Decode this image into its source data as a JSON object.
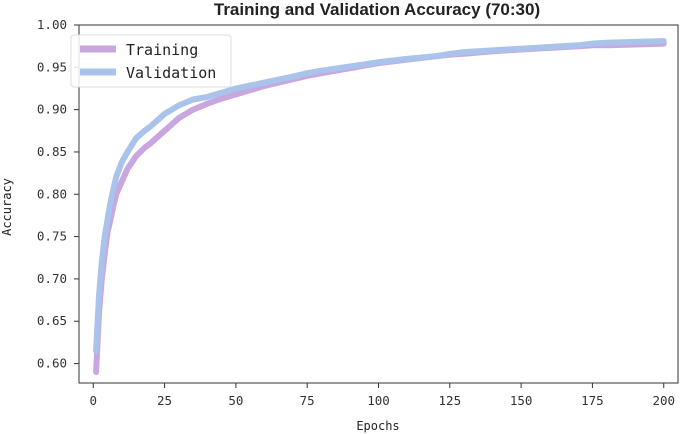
{
  "chart_data": {
    "type": "line",
    "title": "Training and Validation Accuracy (70:30)",
    "xlabel": "Epochs",
    "ylabel": "Accuracy",
    "xlim": [
      -5,
      205
    ],
    "ylim": [
      0.577,
      1.0
    ],
    "xticks": [
      0,
      25,
      50,
      75,
      100,
      125,
      150,
      175,
      200
    ],
    "yticks": [
      0.6,
      0.65,
      0.7,
      0.75,
      0.8,
      0.85,
      0.9,
      0.95,
      1.0
    ],
    "ytick_labels": [
      "0.60",
      "0.65",
      "0.70",
      "0.75",
      "0.80",
      "0.85",
      "0.90",
      "0.95",
      "1.00"
    ],
    "grid": false,
    "legend_position": "top-left",
    "series": [
      {
        "name": "Training",
        "color": "#c9a6e0",
        "x": [
          1,
          2,
          3,
          4,
          5,
          6,
          7,
          8,
          10,
          12,
          15,
          18,
          20,
          25,
          30,
          35,
          40,
          45,
          50,
          60,
          70,
          75,
          80,
          90,
          100,
          110,
          120,
          125,
          130,
          140,
          150,
          160,
          170,
          175,
          180,
          190,
          200
        ],
        "y": [
          0.59,
          0.66,
          0.7,
          0.73,
          0.755,
          0.77,
          0.785,
          0.8,
          0.815,
          0.83,
          0.845,
          0.855,
          0.86,
          0.875,
          0.89,
          0.9,
          0.907,
          0.913,
          0.918,
          0.928,
          0.936,
          0.94,
          0.943,
          0.949,
          0.955,
          0.959,
          0.963,
          0.965,
          0.966,
          0.969,
          0.971,
          0.973,
          0.975,
          0.976,
          0.976,
          0.977,
          0.978
        ]
      },
      {
        "name": "Validation",
        "color": "#a9c3ea",
        "x": [
          1,
          2,
          3,
          4,
          5,
          6,
          7,
          8,
          10,
          12,
          15,
          18,
          20,
          25,
          30,
          35,
          40,
          45,
          50,
          60,
          70,
          75,
          80,
          90,
          100,
          110,
          120,
          125,
          130,
          140,
          150,
          160,
          170,
          175,
          180,
          190,
          200
        ],
        "y": [
          0.615,
          0.68,
          0.72,
          0.75,
          0.77,
          0.79,
          0.805,
          0.82,
          0.838,
          0.85,
          0.866,
          0.875,
          0.88,
          0.895,
          0.905,
          0.912,
          0.915,
          0.92,
          0.925,
          0.932,
          0.939,
          0.943,
          0.946,
          0.951,
          0.956,
          0.96,
          0.963,
          0.966,
          0.968,
          0.97,
          0.972,
          0.974,
          0.976,
          0.978,
          0.979,
          0.98,
          0.981
        ]
      }
    ]
  }
}
